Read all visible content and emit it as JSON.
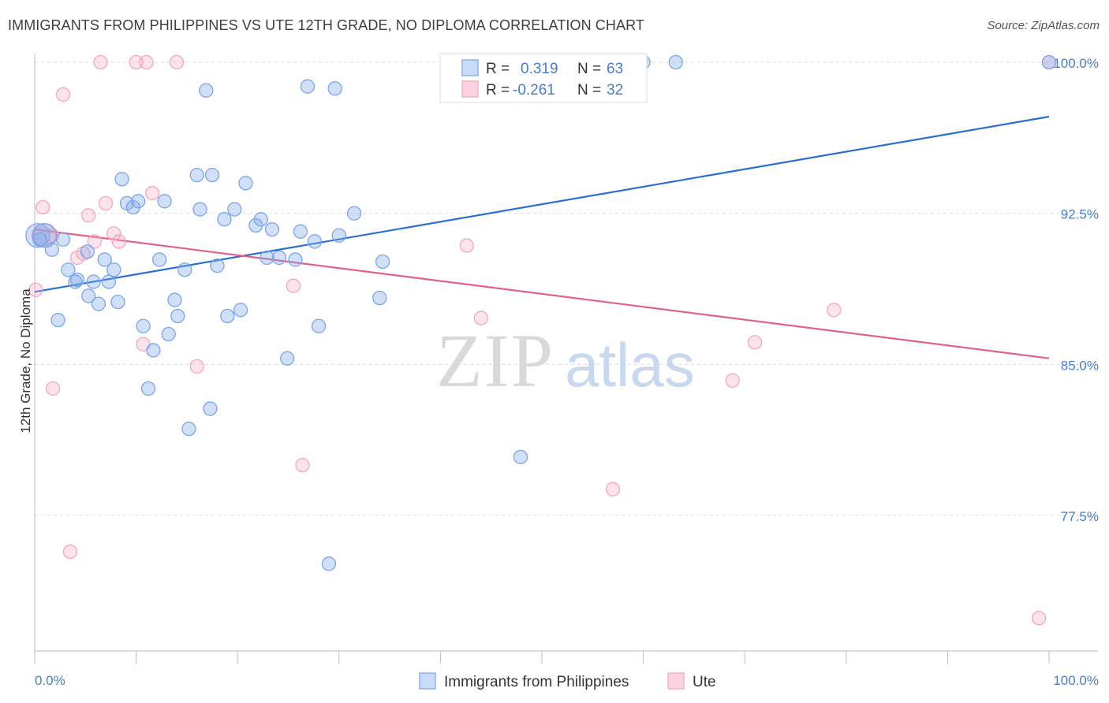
{
  "chart_data": {
    "type": "scatter",
    "title": "IMMIGRANTS FROM PHILIPPINES VS UTE 12TH GRADE, NO DIPLOMA CORRELATION CHART",
    "source": "Source: ZipAtlas.com",
    "ylabel": "12th Grade, No Diploma",
    "xlim": [
      0,
      100
    ],
    "ylim": [
      72.4,
      101.4
    ],
    "x_tick_labels": [
      "0.0%",
      "100.0%"
    ],
    "y_ticks": [
      77.5,
      85.0,
      92.5,
      100.0
    ],
    "y_tick_labels": [
      "77.5%",
      "85.0%",
      "92.5%",
      "100.0%"
    ],
    "grid": true,
    "watermark": {
      "part1": "ZIP",
      "part2": "atlas"
    },
    "legend": {
      "rows": [
        {
          "r_label": "R =",
          "r_value": "0.319",
          "n_label": "N =",
          "n_value": "63"
        },
        {
          "r_label": "R =",
          "r_value": "-0.261",
          "n_label": "N =",
          "n_value": "32"
        }
      ]
    },
    "series": [
      {
        "name": "Immigrants from Philippines",
        "color": "#7aa6e8",
        "line_color": "#2a6fcf",
        "trend": [
          [
            0,
            88.6
          ],
          [
            100,
            97.3
          ]
        ],
        "points": [
          [
            0.5,
            91.2
          ],
          [
            1.0,
            91.4
          ],
          [
            1.7,
            90.7
          ],
          [
            2.3,
            87.2
          ],
          [
            2.8,
            91.2
          ],
          [
            3.3,
            89.7
          ],
          [
            4.0,
            89.1
          ],
          [
            4.2,
            89.2
          ],
          [
            5.2,
            90.6
          ],
          [
            5.3,
            88.4
          ],
          [
            5.8,
            89.1
          ],
          [
            6.3,
            88.0
          ],
          [
            6.9,
            90.2
          ],
          [
            7.3,
            89.1
          ],
          [
            7.8,
            89.7
          ],
          [
            8.2,
            88.1
          ],
          [
            8.6,
            94.2
          ],
          [
            9.1,
            93.0
          ],
          [
            9.7,
            92.8
          ],
          [
            10.2,
            93.1
          ],
          [
            10.7,
            86.9
          ],
          [
            11.2,
            83.8
          ],
          [
            11.7,
            85.7
          ],
          [
            12.3,
            90.2
          ],
          [
            12.8,
            93.1
          ],
          [
            13.2,
            86.5
          ],
          [
            13.8,
            88.2
          ],
          [
            14.1,
            87.4
          ],
          [
            14.8,
            89.7
          ],
          [
            15.2,
            81.8
          ],
          [
            16.0,
            94.4
          ],
          [
            16.3,
            92.7
          ],
          [
            16.9,
            98.6
          ],
          [
            17.3,
            82.8
          ],
          [
            17.5,
            94.4
          ],
          [
            18.0,
            89.9
          ],
          [
            18.7,
            92.2
          ],
          [
            19.0,
            87.4
          ],
          [
            19.7,
            92.7
          ],
          [
            20.3,
            87.7
          ],
          [
            20.8,
            94.0
          ],
          [
            21.8,
            91.9
          ],
          [
            22.3,
            92.2
          ],
          [
            22.9,
            90.3
          ],
          [
            23.4,
            91.7
          ],
          [
            24.1,
            90.3
          ],
          [
            24.9,
            85.3
          ],
          [
            25.7,
            90.2
          ],
          [
            26.2,
            91.6
          ],
          [
            26.9,
            98.8
          ],
          [
            27.6,
            91.1
          ],
          [
            28.0,
            86.9
          ],
          [
            29.0,
            75.1
          ],
          [
            29.6,
            98.7
          ],
          [
            30.0,
            91.4
          ],
          [
            31.5,
            92.5
          ],
          [
            34.0,
            88.3
          ],
          [
            34.3,
            90.1
          ],
          [
            47.9,
            80.4
          ],
          [
            60.0,
            100.0
          ],
          [
            63.2,
            100.0
          ],
          [
            100.0,
            100.0
          ],
          [
            0.3,
            91.4
          ]
        ]
      },
      {
        "name": "Ute",
        "color": "#f4a6bf",
        "line_color": "#e0608e",
        "trend": [
          [
            0,
            91.7
          ],
          [
            100,
            85.3
          ]
        ],
        "points": [
          [
            0.1,
            88.7
          ],
          [
            0.8,
            92.8
          ],
          [
            1.7,
            91.4
          ],
          [
            1.8,
            83.8
          ],
          [
            2.8,
            98.4
          ],
          [
            3.5,
            75.7
          ],
          [
            4.2,
            90.3
          ],
          [
            4.8,
            90.5
          ],
          [
            5.3,
            92.4
          ],
          [
            5.9,
            91.1
          ],
          [
            6.5,
            100.0
          ],
          [
            7.0,
            93.0
          ],
          [
            7.8,
            91.5
          ],
          [
            8.3,
            91.1
          ],
          [
            10.0,
            100.0
          ],
          [
            10.7,
            86.0
          ],
          [
            11.0,
            100.0
          ],
          [
            11.6,
            93.5
          ],
          [
            14.0,
            100.0
          ],
          [
            16.0,
            84.9
          ],
          [
            25.5,
            88.9
          ],
          [
            26.4,
            80.0
          ],
          [
            42.6,
            90.9
          ],
          [
            44.0,
            87.3
          ],
          [
            52.5,
            100.0
          ],
          [
            57.0,
            78.8
          ],
          [
            68.8,
            84.2
          ],
          [
            71.0,
            86.1
          ],
          [
            78.8,
            87.7
          ],
          [
            100.0,
            100.0
          ],
          [
            99.0,
            72.4
          ],
          [
            0.9,
            91.4
          ]
        ]
      }
    ]
  },
  "bottom_legend": [
    "Immigrants from Philippines",
    "Ute"
  ]
}
